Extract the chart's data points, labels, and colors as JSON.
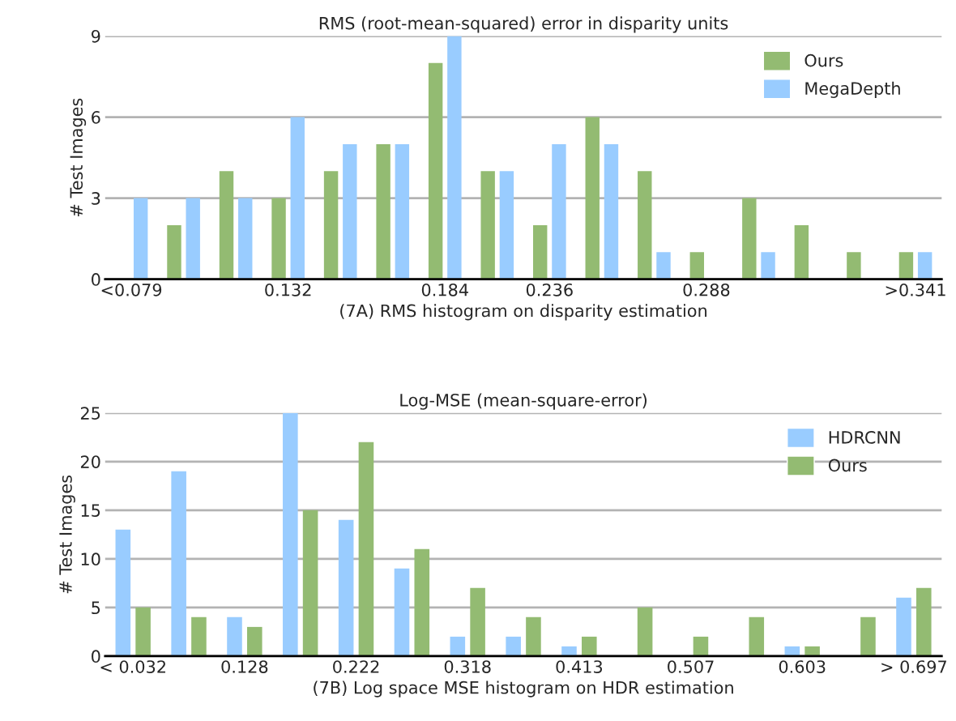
{
  "chart_data": [
    {
      "type": "bar",
      "title": "RMS (root-mean-squared) error in disparity units",
      "xlabel": "(7A) RMS histogram on disparity estimation",
      "ylabel": "# Test Images",
      "categories": [
        "<0.079",
        null,
        null,
        "0.132",
        null,
        null,
        "0.184",
        null,
        "0.236",
        null,
        null,
        "0.288",
        null,
        null,
        null,
        ">0.341"
      ],
      "series": [
        {
          "name": "Ours",
          "color": "#93bb72",
          "values": [
            0,
            2,
            4,
            3,
            4,
            5,
            8,
            4,
            2,
            6,
            4,
            1,
            3,
            2,
            1,
            1
          ]
        },
        {
          "name": "MegaDepth",
          "color": "#99ccff",
          "values": [
            3,
            3,
            3,
            6,
            5,
            5,
            9,
            4,
            5,
            5,
            1,
            0,
            1,
            0,
            0,
            1
          ]
        }
      ],
      "ylim": [
        0,
        9
      ],
      "yticks": [
        0,
        3,
        6,
        9
      ],
      "grid": "y",
      "legend": "top right"
    },
    {
      "type": "bar",
      "title": "Log-MSE (mean-square-error)",
      "xlabel": "(7B) Log space MSE histogram on HDR estimation",
      "ylabel": "# Test Images",
      "categories": [
        "< 0.032",
        null,
        "0.128",
        null,
        "0.222",
        null,
        "0.318",
        null,
        "0.413",
        null,
        "0.507",
        null,
        "0.603",
        null,
        "> 0.697"
      ],
      "series": [
        {
          "name": "HDRCNN",
          "color": "#99ccff",
          "values": [
            13,
            19,
            4,
            25,
            14,
            9,
            2,
            2,
            1,
            0,
            0,
            0,
            1,
            0,
            6
          ]
        },
        {
          "name": "Ours",
          "color": "#93bb72",
          "values": [
            5,
            4,
            3,
            15,
            22,
            11,
            7,
            4,
            2,
            5,
            2,
            4,
            1,
            4,
            7
          ]
        }
      ],
      "ylim": [
        0,
        25
      ],
      "yticks": [
        0,
        5,
        10,
        15,
        20,
        25
      ],
      "grid": "y",
      "legend": "top right"
    }
  ]
}
